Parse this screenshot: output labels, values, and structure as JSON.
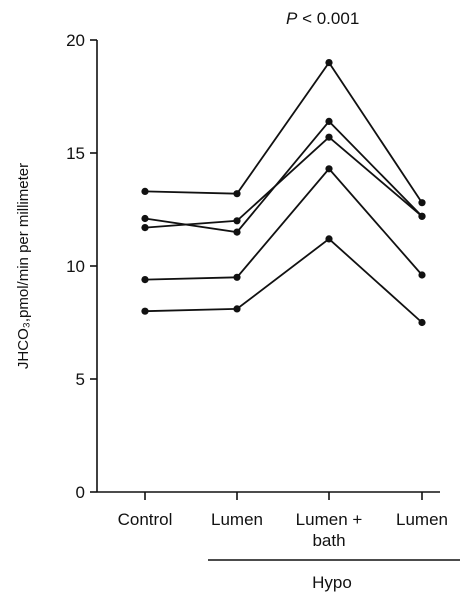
{
  "chart_data": {
    "type": "line",
    "categories": [
      "Control",
      "Lumen",
      "Lumen +\nbath",
      "Lumen"
    ],
    "ylabel": "JHCO₃,pmol/min per millimeter",
    "ylim": [
      0,
      20
    ],
    "yticks": [
      0,
      5,
      10,
      15,
      20
    ],
    "annotation": {
      "p_letter": "P",
      "p_rest": " < 0.001"
    },
    "group_label": "Hypo",
    "grid": false,
    "series": [
      {
        "values": [
          13.3,
          13.2,
          19.0,
          12.8
        ]
      },
      {
        "values": [
          12.1,
          11.5,
          16.4,
          12.2
        ]
      },
      {
        "values": [
          11.7,
          12.0,
          15.7,
          12.2
        ]
      },
      {
        "values": [
          9.4,
          9.5,
          14.3,
          9.6
        ]
      },
      {
        "values": [
          8.0,
          8.1,
          11.2,
          7.5
        ]
      }
    ],
    "color": "#111111"
  }
}
